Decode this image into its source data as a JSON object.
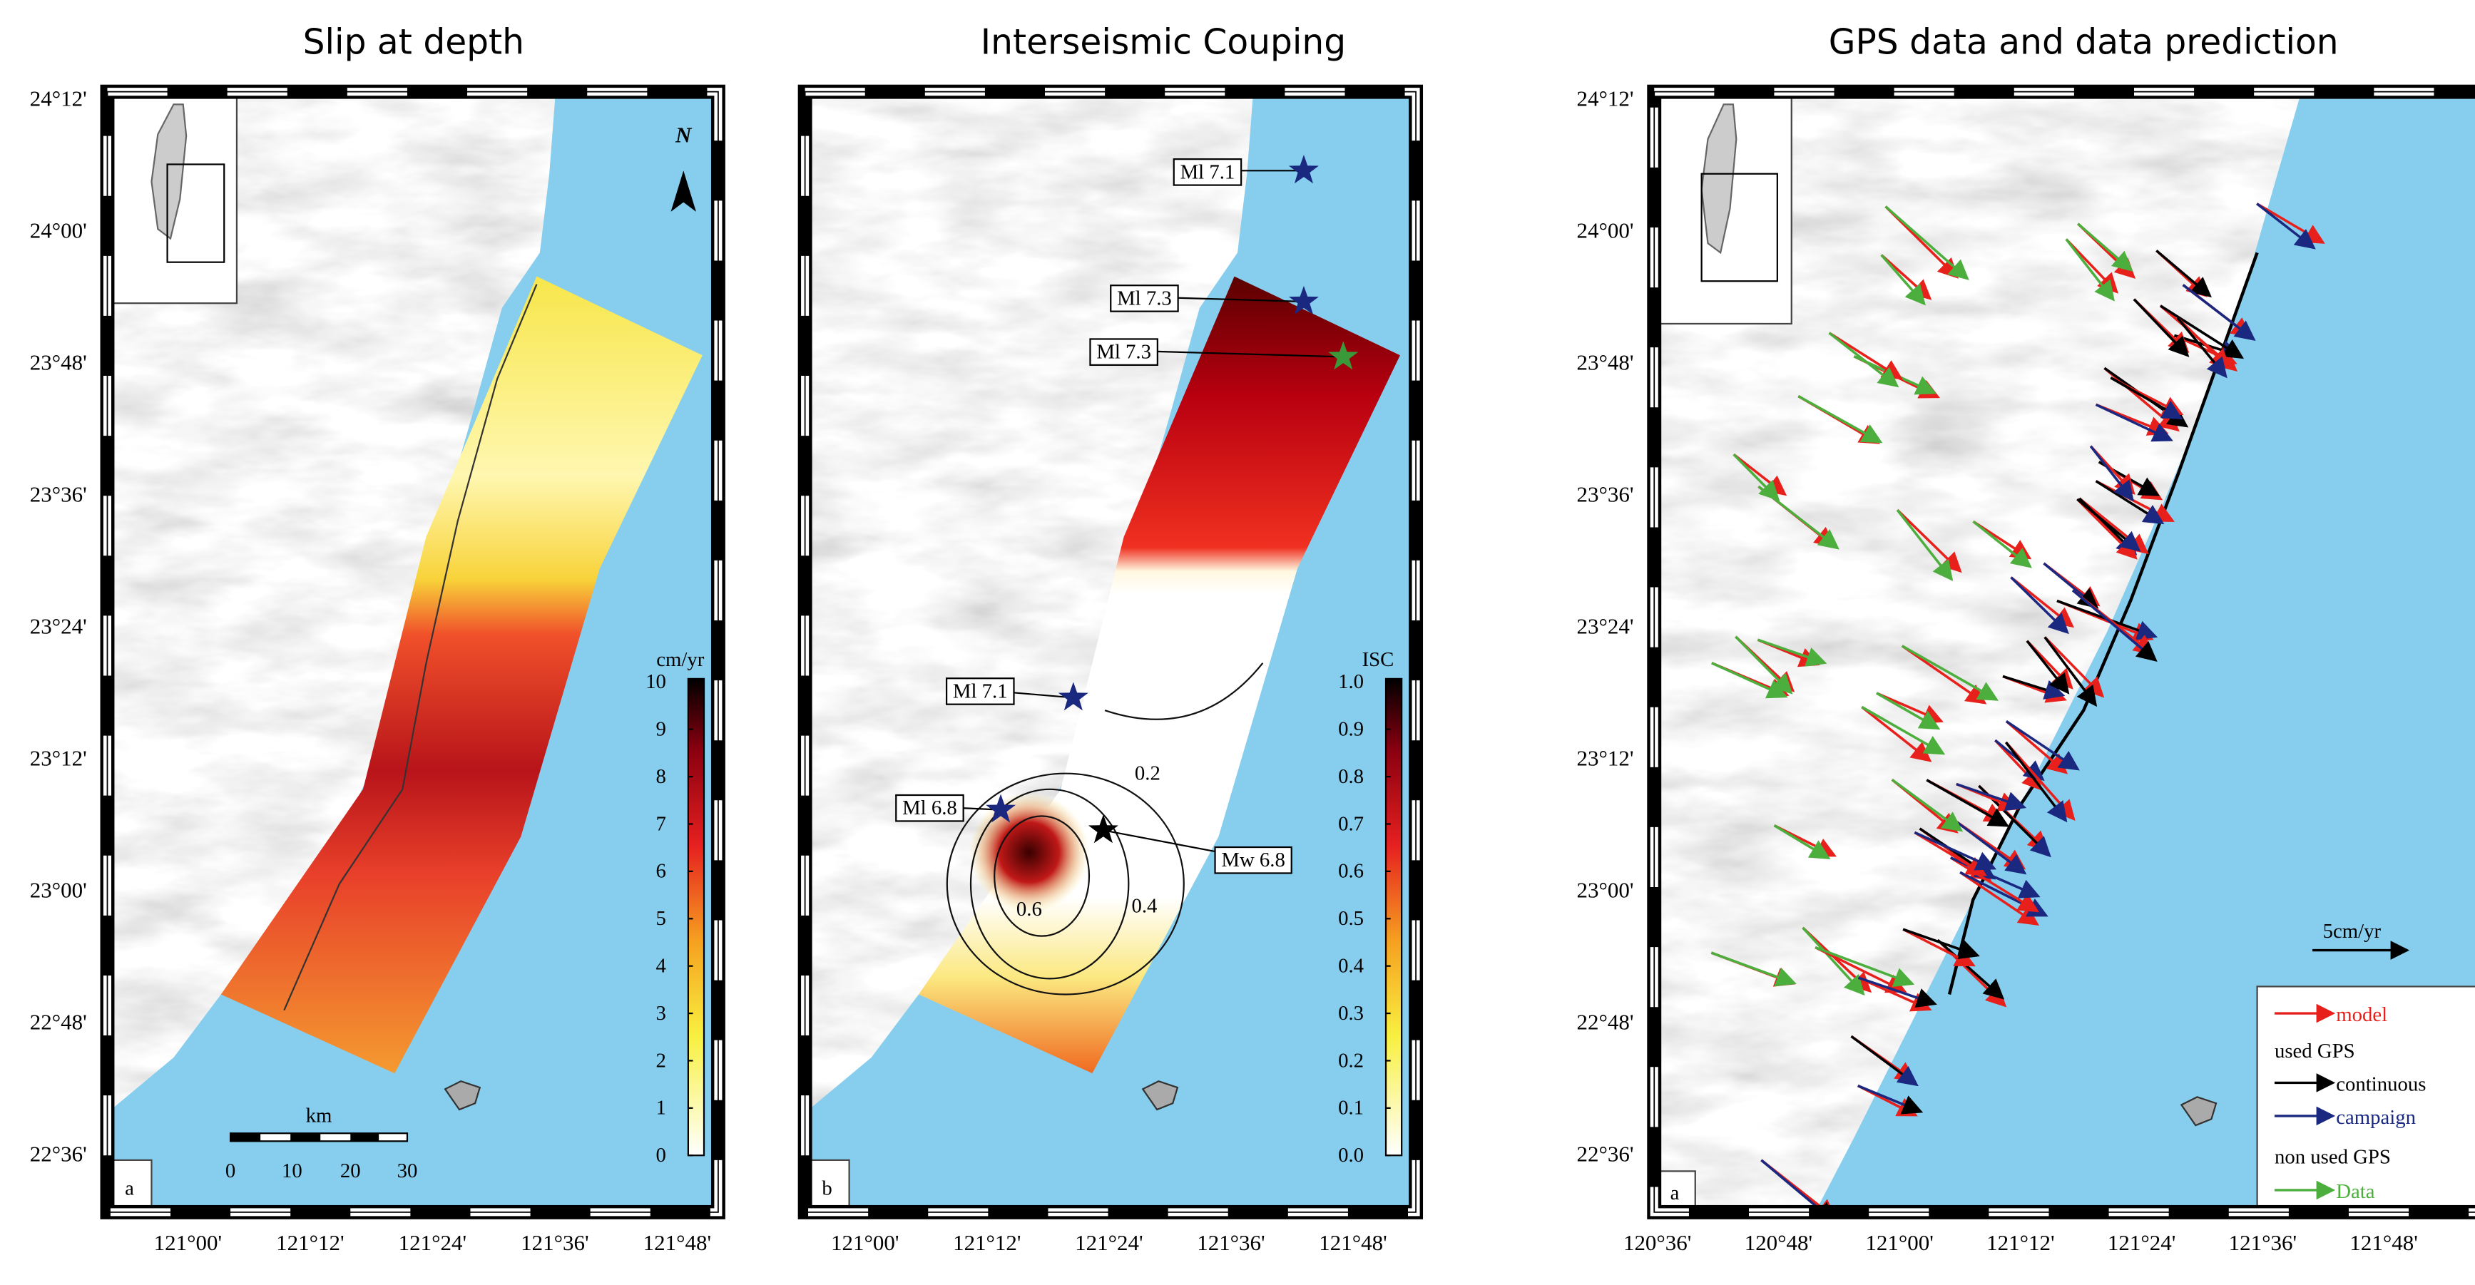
{
  "panels": [
    {
      "title": "Slip at depth",
      "y_labels": [
        "24°12'",
        "24°00'",
        "23°48'",
        "23°36'",
        "23°24'",
        "23°12'",
        "23°00'",
        "22°48'",
        "22°36'"
      ],
      "x_labels": [
        "121°00'",
        "121°12'",
        "121°24'",
        "121°36'",
        "121°48'"
      ],
      "north": "N",
      "colorbar": {
        "label": "cm/yr",
        "ticks": [
          "10",
          "9",
          "8",
          "7",
          "6",
          "5",
          "4",
          "3",
          "2",
          "1",
          "0"
        ]
      },
      "scale_bar": {
        "label": "km",
        "ticks": [
          "0",
          "10",
          "20",
          "30"
        ]
      },
      "panel_label": "a"
    },
    {
      "title": "Interseismic Couping",
      "x_labels": [
        "121°00'",
        "121°12'",
        "121°24'",
        "121°36'",
        "121°48'"
      ],
      "colorbar": {
        "label": "ISC",
        "ticks": [
          "1.0",
          "0.9",
          "0.8",
          "0.7",
          "0.6",
          "0.5",
          "0.4",
          "0.3",
          "0.2",
          "0.1",
          "0.0"
        ]
      },
      "annotations": [
        "Ml 7.1",
        "Ml 7.3",
        "Ml 7.3",
        "Ml 7.1",
        "Ml 6.8",
        "Mw 6.8"
      ],
      "contours": [
        "0.2",
        "0.4",
        "0.6"
      ],
      "panel_label": "b"
    },
    {
      "title": "GPS data and data prediction",
      "y_labels": [
        "24°12'",
        "24°00'",
        "23°48'",
        "23°36'",
        "23°24'",
        "23°12'",
        "23°00'",
        "22°48'",
        "22°36'"
      ],
      "x_labels": [
        "120°36'",
        "120°48'",
        "121°00'",
        "121°12'",
        "121°24'",
        "121°36'",
        "121°48'"
      ],
      "scale": "5cm/yr",
      "legend": [
        "model",
        "used GPS",
        "continuous",
        "campaign",
        "non used GPS",
        "Data"
      ],
      "panel_label": "a"
    }
  ]
}
